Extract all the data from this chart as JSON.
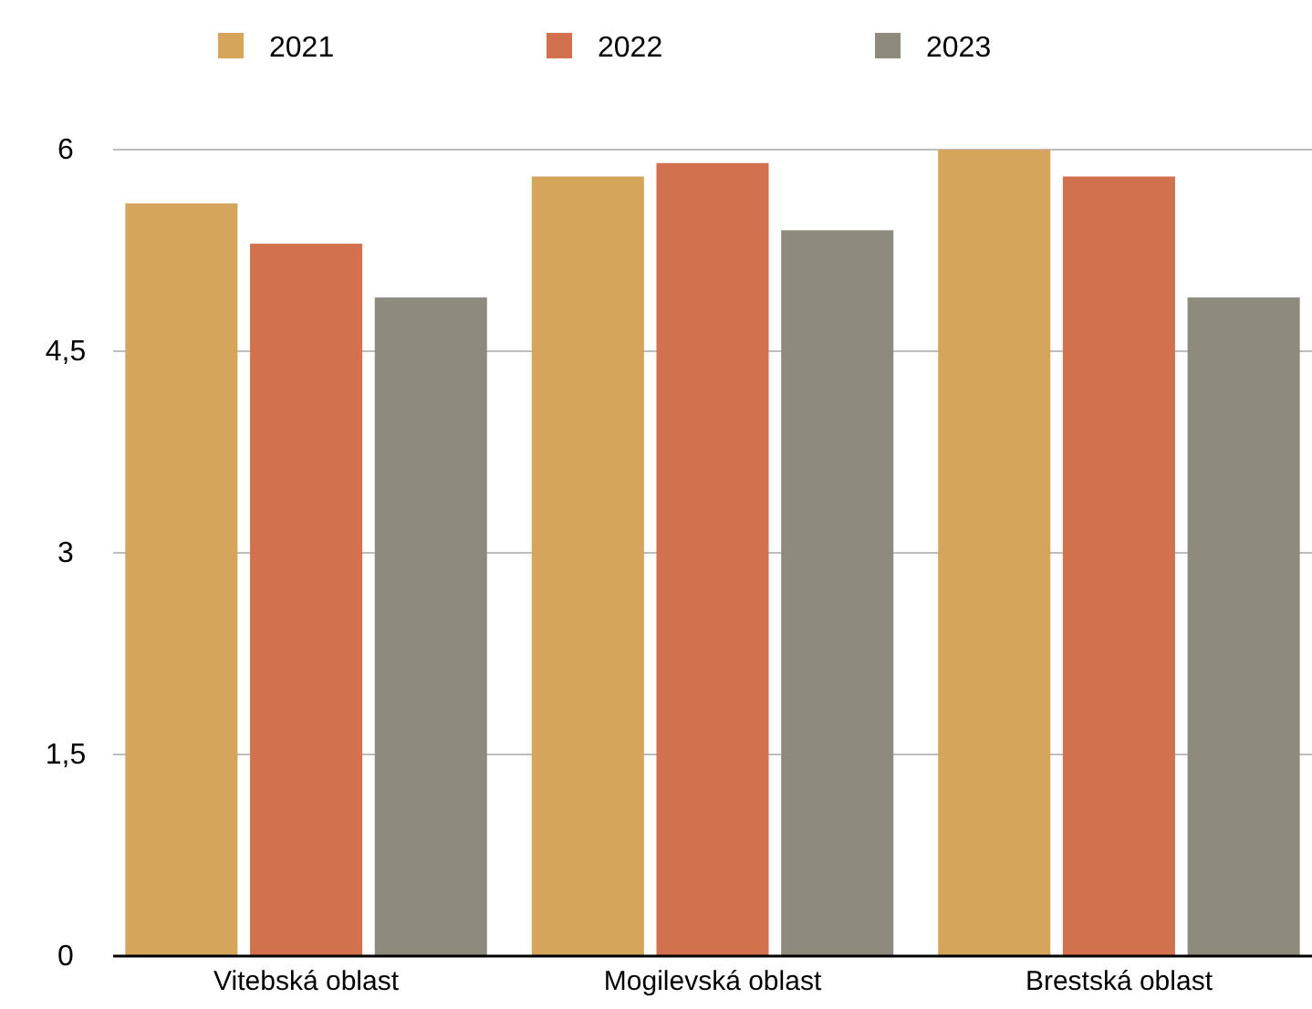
{
  "chart_data": {
    "type": "bar",
    "categories": [
      "Vitebská oblast",
      "Mogilevská oblast",
      "Brestská oblast"
    ],
    "series": [
      {
        "name": "2021",
        "color": "#d4a55a",
        "values": [
          5.6,
          5.8,
          6.0
        ]
      },
      {
        "name": "2022",
        "color": "#d2714d",
        "values": [
          5.3,
          5.9,
          5.8
        ]
      },
      {
        "name": "2023",
        "color": "#8f8a7e",
        "values": [
          4.9,
          5.4,
          4.9
        ]
      }
    ],
    "ylim": [
      0,
      6
    ],
    "yticks": [
      0,
      {
        "value": 1.5,
        "label": "1,5"
      },
      3,
      {
        "value": 4.5,
        "label": "4,5"
      },
      6
    ],
    "grid": "y",
    "legend": "top"
  }
}
